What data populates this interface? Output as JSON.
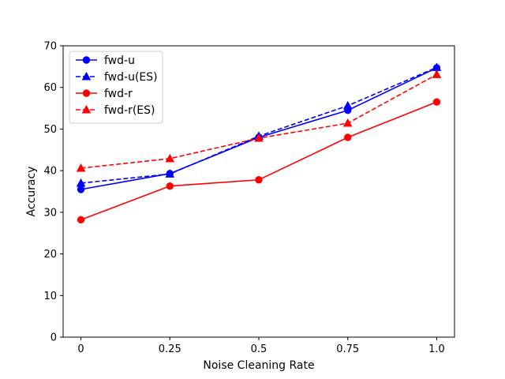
{
  "chart_data": {
    "type": "line",
    "title": "",
    "xlabel": "Noise Cleaning Rate",
    "ylabel": "Accuracy",
    "x": [
      0,
      0.25,
      0.5,
      0.75,
      1.0
    ],
    "x_tick_labels": [
      "0",
      "0.25",
      "0.5",
      "0.75",
      "1.0"
    ],
    "xlim": [
      -0.05,
      1.05
    ],
    "ylim": [
      0,
      70
    ],
    "y_ticks": [
      0,
      10,
      20,
      30,
      40,
      50,
      60,
      70
    ],
    "grid": false,
    "legend_position": "top-left",
    "series": [
      {
        "name": "fwd-u",
        "color": "#0000ff",
        "linestyle": "solid",
        "marker": "circle",
        "values": [
          35.5,
          39.3,
          48.0,
          54.5,
          64.7
        ]
      },
      {
        "name": "fwd-u(ES)",
        "color": "#0000ff",
        "linestyle": "dashed",
        "marker": "triangle",
        "values": [
          37.0,
          39.2,
          48.3,
          55.6,
          64.8
        ]
      },
      {
        "name": "fwd-r",
        "color": "#ff0000",
        "linestyle": "solid",
        "marker": "circle",
        "values": [
          28.2,
          36.3,
          37.8,
          48.0,
          56.5
        ]
      },
      {
        "name": "fwd-r(ES)",
        "color": "#ff0000",
        "linestyle": "dashed",
        "marker": "triangle",
        "values": [
          40.6,
          42.9,
          47.8,
          51.4,
          63.1
        ]
      }
    ]
  }
}
